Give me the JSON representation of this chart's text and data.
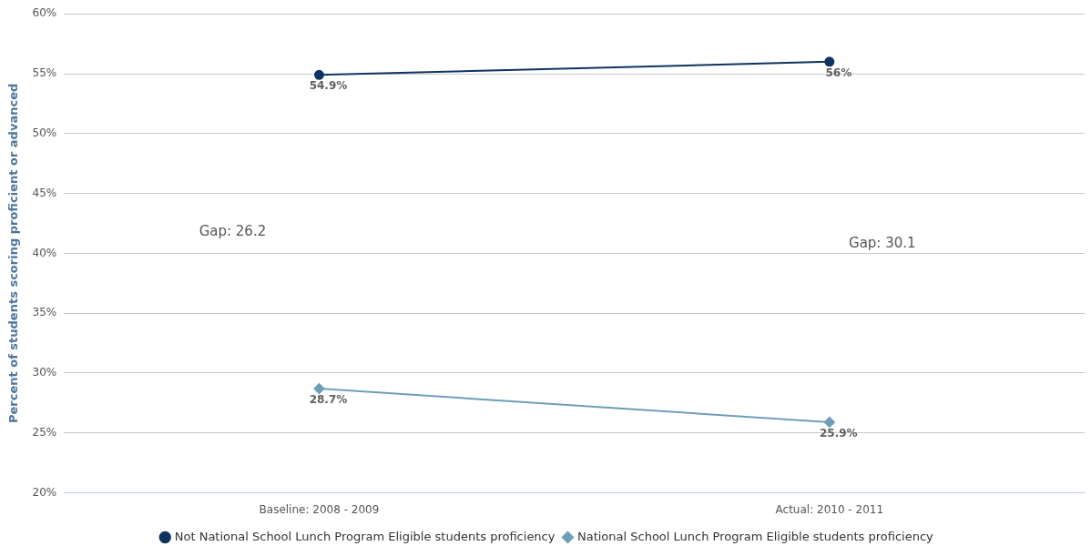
{
  "chart_data": {
    "type": "line",
    "ylabel": "Percent of students scoring proficient or advanced",
    "categories": [
      "Baseline: 2008 - 2009",
      "Actual: 2010 - 2011"
    ],
    "series": [
      {
        "name": "Not National School Lunch Program Eligible students proficiency",
        "color": "#0d3461",
        "marker": "circle",
        "values": [
          54.9,
          56
        ],
        "value_labels": [
          "54.9%",
          "56%"
        ]
      },
      {
        "name": "National School Lunch Program Eligible students proficiency",
        "color": "#6d9fb8",
        "marker": "diamond",
        "values": [
          28.7,
          25.9
        ],
        "value_labels": [
          "28.7%",
          "25.9%"
        ]
      }
    ],
    "ylim": [
      20,
      60
    ],
    "yticks": [
      {
        "value": 20,
        "label": "20%"
      },
      {
        "value": 25,
        "label": "25%"
      },
      {
        "value": 30,
        "label": "30%"
      },
      {
        "value": 35,
        "label": "35%"
      },
      {
        "value": 40,
        "label": "40%"
      },
      {
        "value": 45,
        "label": "45%"
      },
      {
        "value": 50,
        "label": "50%"
      },
      {
        "value": 55,
        "label": "55%"
      },
      {
        "value": 60,
        "label": "60%"
      }
    ],
    "grid": "y",
    "legend": "bottom",
    "annotations": [
      "Gap: 26.2",
      "Gap: 30.1"
    ]
  }
}
